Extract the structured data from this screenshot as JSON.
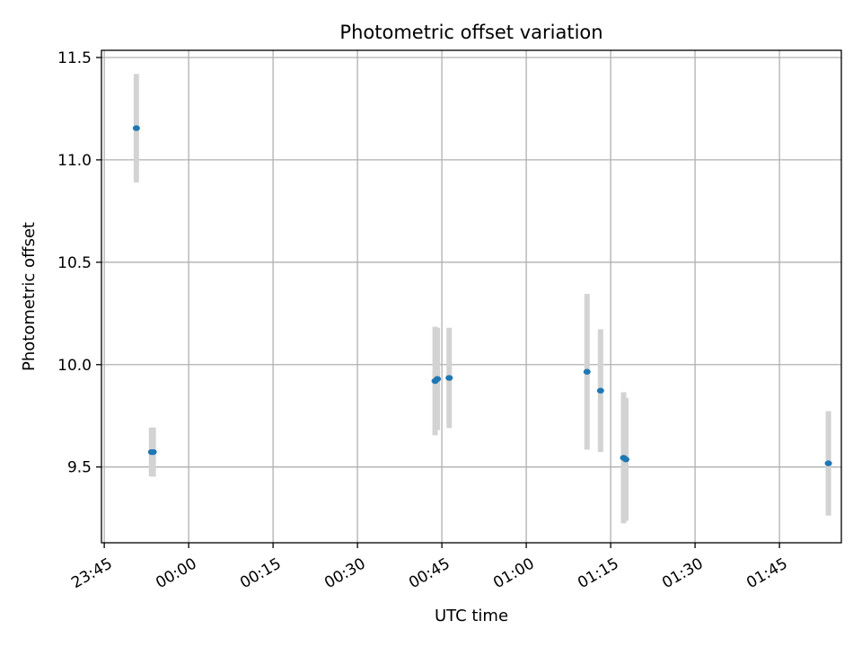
{
  "chart_data": {
    "type": "scatter",
    "title": "Photometric offset variation",
    "xlabel": "UTC time",
    "ylabel": "Photometric offset",
    "x_ticks": [
      "23:45",
      "00:00",
      "00:15",
      "00:30",
      "00:45",
      "01:00",
      "01:15",
      "01:30",
      "01:45"
    ],
    "x_tick_minutes": [
      -15,
      0,
      15,
      30,
      45,
      60,
      75,
      90,
      105
    ],
    "xlim_minutes": [
      -15.5,
      116
    ],
    "y_ticks": [
      "9.5",
      "10.0",
      "10.5",
      "11.0",
      "11.5"
    ],
    "y_tick_values": [
      9.5,
      10.0,
      10.5,
      11.0,
      11.5
    ],
    "ylim": [
      9.13,
      11.535
    ],
    "grid": true,
    "marker_color": "#1f77b4",
    "errorbar_color": "#d3d3d3",
    "points": [
      {
        "x": -9.3,
        "y": 11.155,
        "err": 0.265
      },
      {
        "x": -6.6,
        "y": 9.573,
        "err": 0.12
      },
      {
        "x": -6.3,
        "y": 9.573,
        "err": 0.12
      },
      {
        "x": 43.8,
        "y": 9.92,
        "err": 0.265
      },
      {
        "x": 44.2,
        "y": 9.93,
        "err": 0.25
      },
      {
        "x": 46.3,
        "y": 9.935,
        "err": 0.245
      },
      {
        "x": 70.8,
        "y": 9.965,
        "err": 0.38
      },
      {
        "x": 73.2,
        "y": 9.873,
        "err": 0.3
      },
      {
        "x": 77.3,
        "y": 9.545,
        "err": 0.32
      },
      {
        "x": 77.7,
        "y": 9.537,
        "err": 0.3
      },
      {
        "x": 113.7,
        "y": 9.518,
        "err": 0.255
      }
    ]
  }
}
